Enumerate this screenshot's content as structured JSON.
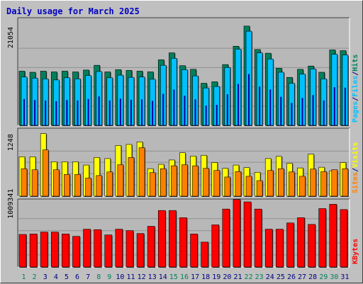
{
  "title": "Daily usage for March 2025",
  "colors": {
    "background": "#c0c0c0",
    "plot": "#b8b8b8",
    "hits": "#00805c",
    "files": "#00c0ff",
    "pages": "#00c0ff",
    "visits": "#ffff00",
    "sites": "#ff8000",
    "kbytes": "#ff0000",
    "title": "#0000c0",
    "weekend_label": "#00805c",
    "weekday_label": "#000080"
  },
  "chart_data": [
    {
      "type": "bar",
      "panel": "top",
      "y_tick_label": "21054",
      "y_tick_value": 21054,
      "ylim": [
        0,
        29000
      ],
      "legend": [
        {
          "text": "Pages",
          "color": "#00c0ff"
        },
        {
          "text": "/",
          "color": "#000080"
        },
        {
          "text": "Files",
          "color": "#00c0ff"
        },
        {
          "text": "/",
          "color": "#000080"
        },
        {
          "text": "Hits",
          "color": "#00805c"
        }
      ],
      "categories": [
        "1",
        "2",
        "3",
        "4",
        "5",
        "6",
        "7",
        "8",
        "9",
        "10",
        "11",
        "12",
        "13",
        "14",
        "15",
        "16",
        "17",
        "18",
        "19",
        "20",
        "21",
        "22",
        "23",
        "24",
        "25",
        "26",
        "27",
        "28",
        "29",
        "30",
        "31"
      ],
      "series": [
        {
          "name": "Hits",
          "values": [
            14800,
            14500,
            14800,
            14600,
            14800,
            14600,
            15100,
            16400,
            14600,
            15200,
            15000,
            14800,
            14600,
            17900,
            19800,
            16300,
            15300,
            11500,
            11900,
            16600,
            21600,
            27100,
            20700,
            19700,
            15600,
            13100,
            15300,
            16200,
            14500,
            20600,
            20400
          ]
        },
        {
          "name": "Files",
          "values": [
            13200,
            12900,
            12700,
            12400,
            13000,
            12700,
            13600,
            14700,
            13000,
            13700,
            13100,
            13200,
            12600,
            16400,
            18300,
            15200,
            13500,
            10200,
            10600,
            15800,
            20800,
            25700,
            19800,
            18100,
            14500,
            11500,
            14000,
            15400,
            12700,
            19400,
            19200
          ]
        },
        {
          "name": "Pages",
          "values": [
            7200,
            6900,
            6800,
            6600,
            6900,
            6800,
            7200,
            7900,
            6800,
            7300,
            7000,
            7100,
            6700,
            8600,
            9800,
            8100,
            7100,
            5400,
            5600,
            8500,
            11300,
            14000,
            10600,
            9800,
            7800,
            6100,
            7500,
            8300,
            6800,
            10400,
            10300
          ]
        }
      ]
    },
    {
      "type": "bar",
      "panel": "middle",
      "y_tick_label": "1248",
      "y_tick_value": 1248,
      "ylim": [
        0,
        1840
      ],
      "legend": [
        {
          "text": "Sites",
          "color": "#ff8000"
        },
        {
          "text": "/",
          "color": "#000080"
        },
        {
          "text": "Visits",
          "color": "#ffff00"
        }
      ],
      "categories": [
        "1",
        "2",
        "3",
        "4",
        "5",
        "6",
        "7",
        "8",
        "9",
        "10",
        "11",
        "12",
        "13",
        "14",
        "15",
        "16",
        "17",
        "18",
        "19",
        "20",
        "21",
        "22",
        "23",
        "24",
        "25",
        "26",
        "27",
        "28",
        "29",
        "30",
        "31"
      ],
      "series": [
        {
          "name": "Visits",
          "values": [
            1090,
            1090,
            1730,
            950,
            950,
            950,
            860,
            1070,
            1040,
            1400,
            1430,
            1500,
            760,
            880,
            1000,
            1200,
            1110,
            1130,
            930,
            770,
            860,
            790,
            660,
            1040,
            1100,
            910,
            780,
            1160,
            800,
            700,
            930
          ]
        },
        {
          "name": "Sites",
          "values": [
            760,
            730,
            1280,
            730,
            600,
            600,
            500,
            570,
            670,
            870,
            1070,
            1340,
            650,
            760,
            840,
            870,
            840,
            770,
            710,
            530,
            680,
            550,
            430,
            710,
            760,
            670,
            550,
            750,
            680,
            730,
            760
          ]
        }
      ]
    },
    {
      "type": "bar",
      "panel": "bottom",
      "y_tick_label": "1009341",
      "y_tick_value": 1009341,
      "ylim": [
        0,
        1390000
      ],
      "legend": [
        {
          "text": "KBytes",
          "color": "#ff0000"
        }
      ],
      "categories": [
        "1",
        "2",
        "3",
        "4",
        "5",
        "6",
        "7",
        "8",
        "9",
        "10",
        "11",
        "12",
        "13",
        "14",
        "15",
        "16",
        "17",
        "18",
        "19",
        "20",
        "21",
        "22",
        "23",
        "24",
        "25",
        "26",
        "27",
        "28",
        "29",
        "30",
        "31"
      ],
      "series": [
        {
          "name": "KBytes",
          "values": [
            680000,
            690000,
            730000,
            730000,
            690000,
            640000,
            790000,
            780000,
            670000,
            790000,
            760000,
            700000,
            850000,
            1180000,
            1180000,
            1030000,
            690000,
            520000,
            880000,
            1210000,
            1410000,
            1360000,
            1210000,
            790000,
            790000,
            920000,
            1030000,
            890000,
            1220000,
            1310000,
            1200000
          ]
        }
      ]
    }
  ],
  "x_labels": [
    {
      "text": "1",
      "weekend": true
    },
    {
      "text": "2",
      "weekend": true
    },
    {
      "text": "3",
      "weekend": false
    },
    {
      "text": "4",
      "weekend": false
    },
    {
      "text": "5",
      "weekend": false
    },
    {
      "text": "6",
      "weekend": false
    },
    {
      "text": "7",
      "weekend": false
    },
    {
      "text": "8",
      "weekend": true
    },
    {
      "text": "9",
      "weekend": true
    },
    {
      "text": "10",
      "weekend": false
    },
    {
      "text": "11",
      "weekend": false
    },
    {
      "text": "12",
      "weekend": false
    },
    {
      "text": "13",
      "weekend": false
    },
    {
      "text": "14",
      "weekend": false
    },
    {
      "text": "15",
      "weekend": true
    },
    {
      "text": "16",
      "weekend": true
    },
    {
      "text": "17",
      "weekend": false
    },
    {
      "text": "18",
      "weekend": false
    },
    {
      "text": "19",
      "weekend": false
    },
    {
      "text": "20",
      "weekend": false
    },
    {
      "text": "21",
      "weekend": false
    },
    {
      "text": "22",
      "weekend": true
    },
    {
      "text": "23",
      "weekend": true
    },
    {
      "text": "24",
      "weekend": false
    },
    {
      "text": "25",
      "weekend": false
    },
    {
      "text": "26",
      "weekend": false
    },
    {
      "text": "27",
      "weekend": false
    },
    {
      "text": "28",
      "weekend": false
    },
    {
      "text": "29",
      "weekend": true
    },
    {
      "text": "30",
      "weekend": true
    },
    {
      "text": "31",
      "weekend": false
    }
  ]
}
